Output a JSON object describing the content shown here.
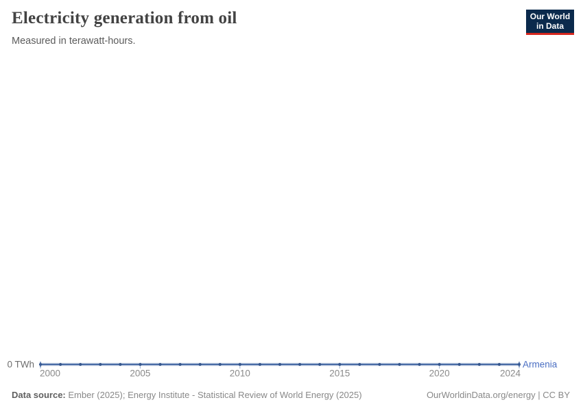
{
  "header": {
    "title": "Electricity generation from oil",
    "subtitle": "Measured in terawatt-hours."
  },
  "logo": {
    "line1": "Our World",
    "line2": "in Data",
    "bg_color": "#0b2a4c",
    "accent_color": "#d6271f"
  },
  "chart_data": {
    "type": "line",
    "title": "Electricity generation from oil",
    "ylabel": "terawatt-hours",
    "xlim": [
      2000,
      2024
    ],
    "ylim": [
      0,
      0
    ],
    "grid": false,
    "legend_position": "end-of-line",
    "x": [
      2000,
      2001,
      2002,
      2003,
      2004,
      2005,
      2006,
      2007,
      2008,
      2009,
      2010,
      2011,
      2012,
      2013,
      2014,
      2015,
      2016,
      2017,
      2018,
      2019,
      2020,
      2021,
      2022,
      2023,
      2024
    ],
    "series": [
      {
        "name": "Armenia",
        "color": "#3a5f9e",
        "halo_color": "#b9c7de",
        "point_color": "#35568c",
        "values": [
          0,
          0,
          0,
          0,
          0,
          0,
          0,
          0,
          0,
          0,
          0,
          0,
          0,
          0,
          0,
          0,
          0,
          0,
          0,
          0,
          0,
          0,
          0,
          0,
          0
        ]
      }
    ],
    "x_ticks": [
      2000,
      2005,
      2010,
      2015,
      2020,
      2024
    ],
    "tick_color": "#9db0cf",
    "y_zero_label": "0 TWh"
  },
  "footer": {
    "datasource_label": "Data source:",
    "datasource_text": " Ember (2025); Energy Institute - Statistical Review of World Energy (2025)",
    "url_text": "OurWorldinData.org/energy | CC BY"
  }
}
